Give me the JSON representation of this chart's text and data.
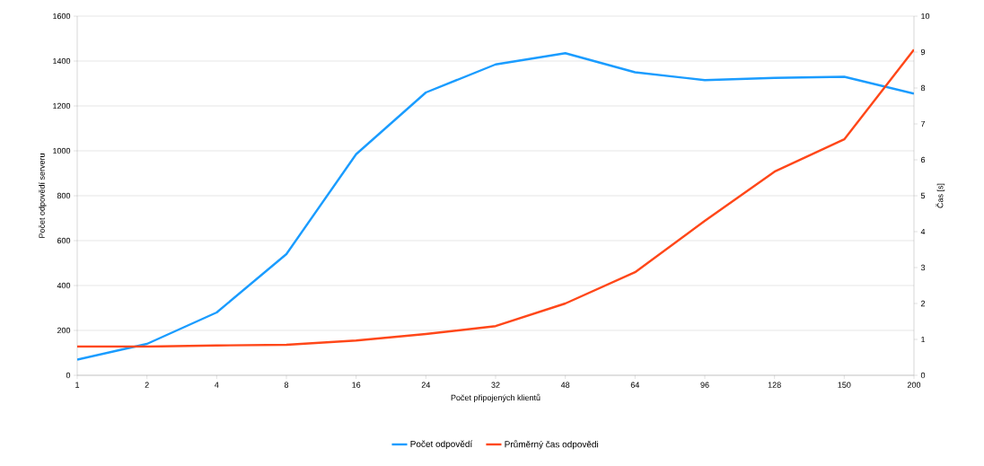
{
  "chart_data": {
    "type": "line",
    "xlabel": "Počet připojených klientů",
    "ylabel": "Počet odpovědí serveru",
    "y2label": "Čas [s]",
    "categories": [
      "1",
      "2",
      "4",
      "8",
      "16",
      "24",
      "32",
      "48",
      "64",
      "96",
      "128",
      "150",
      "200"
    ],
    "series": [
      {
        "name": "Počet odpovědí",
        "color": "#1a9cff",
        "values": [
          70,
          140,
          280,
          540,
          985,
          1260,
          1385,
          1435,
          1350,
          1315,
          1325,
          1330,
          1255
        ]
      },
      {
        "name": "Průměrný čas odpovědi",
        "color": "#ff4719",
        "axis": "y2",
        "values": [
          0.8,
          0.8,
          0.83,
          0.85,
          0.97,
          1.15,
          1.37,
          2.0,
          2.87,
          4.3,
          5.67,
          6.57,
          9.07
        ]
      }
    ],
    "ylim": [
      0,
      1600
    ],
    "yticks": [
      0,
      200,
      400,
      600,
      800,
      1000,
      1200,
      1400,
      1600
    ],
    "y2lim": [
      0,
      10
    ],
    "y2ticks": [
      0,
      1,
      2,
      3,
      4,
      5,
      6,
      7,
      8,
      9,
      10
    ],
    "grid": "y",
    "legend": "bottom"
  }
}
